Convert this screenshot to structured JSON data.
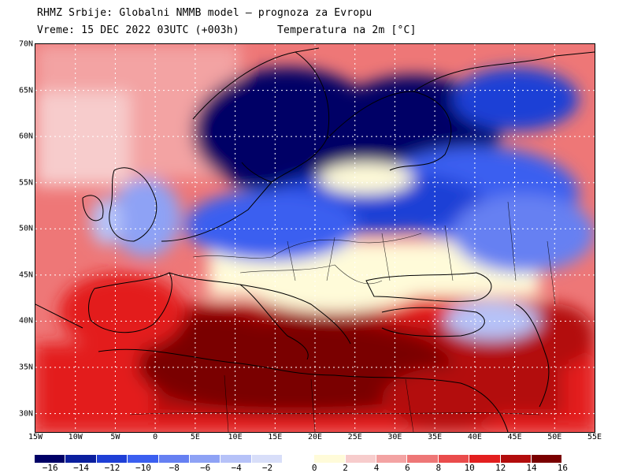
{
  "header": {
    "line1": "RHMZ Srbije: Globalni NMMB model — prognoza za Evropu",
    "line2": "Vreme: 15 DEC 2022 03UTC (+003h)      Temperatura na 2m [°C]"
  },
  "map": {
    "lat_labels": [
      "70N",
      "65N",
      "60N",
      "55N",
      "50N",
      "45N",
      "40N",
      "35N",
      "30N"
    ],
    "lon_labels": [
      "15W",
      "10W",
      "5W",
      "0",
      "5E",
      "10E",
      "15E",
      "20E",
      "25E",
      "30E",
      "35E",
      "40E",
      "45E",
      "50E",
      "55E"
    ],
    "lat_range": [
      28,
      70
    ],
    "lon_range": [
      -15,
      55
    ],
    "grid": true
  },
  "colorbar": {
    "colors": [
      "#000066",
      "#0b1f9e",
      "#1f3fd6",
      "#3b5ff0",
      "#6680f2",
      "#8ea2f5",
      "#b6c2f8",
      "#d8def9",
      "#fffbd9",
      "#f7cccc",
      "#f3a3a3",
      "#ee7777",
      "#ea4c4c",
      "#e31f1f",
      "#b30d0d",
      "#7a0000"
    ],
    "labels": [
      "−16",
      "−14",
      "−12",
      "−10",
      "−8",
      "−6",
      "−4",
      "−2",
      "0",
      "2",
      "4",
      "6",
      "8",
      "10",
      "12",
      "14",
      "16"
    ]
  }
}
